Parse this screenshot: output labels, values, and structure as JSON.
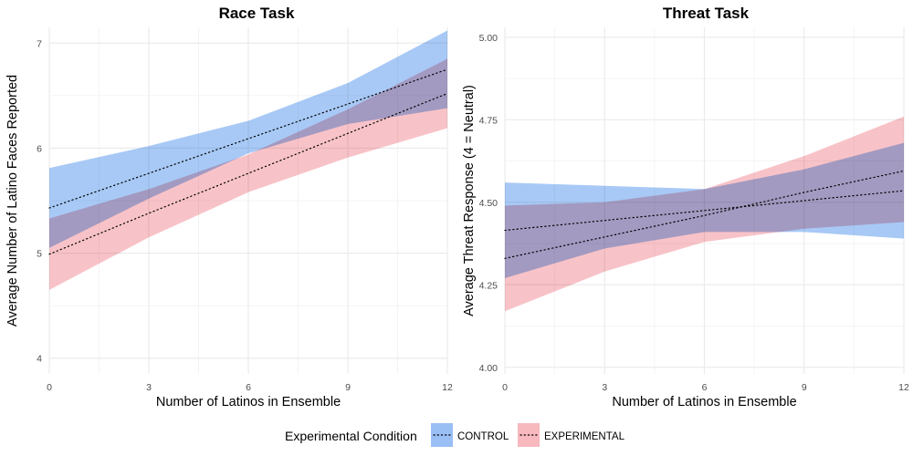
{
  "legend": {
    "title": "Experimental Condition",
    "items": [
      {
        "label": "CONTROL",
        "fill": "#99BFF5"
      },
      {
        "label": "EXPERIMENTAL",
        "fill": "#F7B8BE"
      }
    ]
  },
  "chart_data": [
    {
      "type": "line",
      "title": "Race Task",
      "xlabel": "Number of Latinos in Ensemble",
      "ylabel": "Average Number of Latino Faces Reported",
      "xlim": [
        0,
        12
      ],
      "ylim": [
        3.85,
        7.15
      ],
      "xticks": [
        0,
        3,
        6,
        9,
        12
      ],
      "yticks": [
        4,
        5,
        6,
        7
      ],
      "grid": true,
      "series": [
        {
          "name": "CONTROL",
          "fill": "#99BFF5",
          "x": [
            0,
            3,
            6,
            9,
            12
          ],
          "y": [
            5.43,
            5.76,
            6.09,
            6.42,
            6.75
          ],
          "lower": [
            5.05,
            5.52,
            5.95,
            6.23,
            6.38
          ],
          "upper": [
            5.81,
            6.02,
            6.26,
            6.62,
            7.12
          ]
        },
        {
          "name": "EXPERIMENTAL",
          "fill": "#F7B8BE",
          "x": [
            0,
            3,
            6,
            9,
            12
          ],
          "y": [
            4.99,
            5.38,
            5.76,
            6.14,
            6.52
          ],
          "lower": [
            4.65,
            5.15,
            5.58,
            5.91,
            6.19
          ],
          "upper": [
            5.33,
            5.61,
            5.94,
            6.37,
            6.85
          ]
        }
      ]
    },
    {
      "type": "line",
      "title": "Threat Task",
      "xlabel": "Number of Latinos in Ensemble",
      "ylabel": "Average Threat Response (4 = Neutral)",
      "xlim": [
        0,
        12
      ],
      "ylim": [
        3.98,
        5.03
      ],
      "xticks": [
        0,
        3,
        6,
        9,
        12
      ],
      "yticks": [
        4.0,
        4.25,
        4.5,
        4.75,
        5.0
      ],
      "yticklabels": [
        "4.00",
        "4.25",
        "4.50",
        "4.75",
        "5.00"
      ],
      "grid": true,
      "series": [
        {
          "name": "CONTROL",
          "fill": "#99BFF5",
          "x": [
            0,
            3,
            6,
            9,
            12
          ],
          "y": [
            4.415,
            4.445,
            4.475,
            4.505,
            4.535
          ],
          "lower": [
            4.27,
            4.36,
            4.41,
            4.41,
            4.39
          ],
          "upper": [
            4.56,
            4.55,
            4.54,
            4.6,
            4.68
          ]
        },
        {
          "name": "EXPERIMENTAL",
          "fill": "#F7B8BE",
          "x": [
            0,
            3,
            6,
            9,
            12
          ],
          "y": [
            4.33,
            4.395,
            4.46,
            4.53,
            4.595
          ],
          "lower": [
            4.17,
            4.29,
            4.38,
            4.42,
            4.44
          ],
          "upper": [
            4.49,
            4.5,
            4.54,
            4.64,
            4.76
          ]
        }
      ]
    }
  ]
}
